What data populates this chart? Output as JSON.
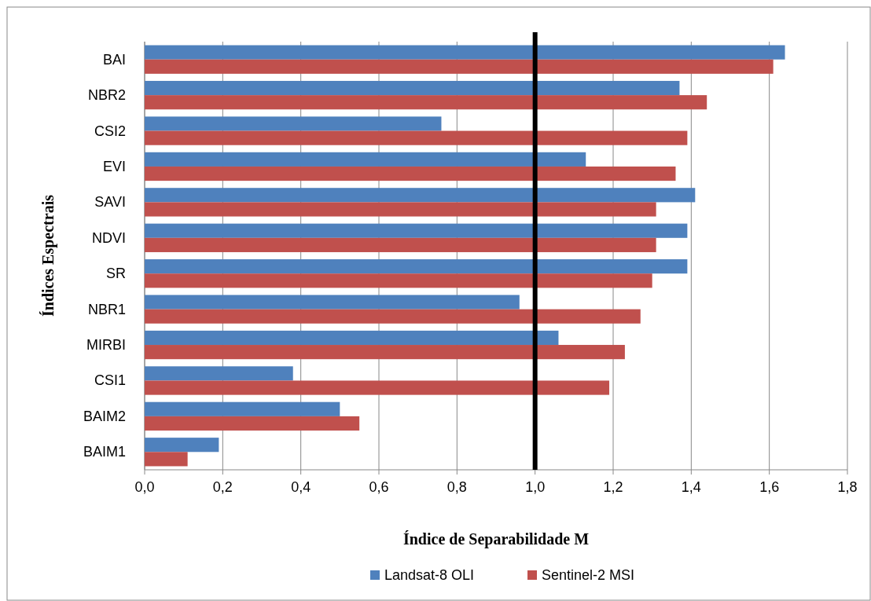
{
  "chart_data": {
    "type": "bar",
    "orientation": "horizontal",
    "xlabel": "Índice de Separabilidade M",
    "ylabel": "Índices Espectrais",
    "categories": [
      "BAI",
      "NBR2",
      "CSI2",
      "EVI",
      "SAVI",
      "NDVI",
      "SR",
      "NBR1",
      "MIRBI",
      "CSI1",
      "BAIM2",
      "BAIM1"
    ],
    "series": [
      {
        "name": "Landsat-8 OLI",
        "color": "#4f81bd",
        "values": [
          1.64,
          1.37,
          0.76,
          1.13,
          1.41,
          1.39,
          1.39,
          0.96,
          1.06,
          0.38,
          0.5,
          0.19
        ]
      },
      {
        "name": "Sentinel-2 MSI",
        "color": "#c0504d",
        "values": [
          1.61,
          1.44,
          1.39,
          1.36,
          1.31,
          1.31,
          1.3,
          1.27,
          1.23,
          1.19,
          0.55,
          0.11
        ]
      }
    ],
    "xlim": [
      0,
      1.8
    ],
    "xticks": [
      {
        "value": 0,
        "label": "0,0"
      },
      {
        "value": 0.2,
        "label": "0,2"
      },
      {
        "value": 0.4,
        "label": "0,4"
      },
      {
        "value": 0.6,
        "label": "0,6"
      },
      {
        "value": 0.8,
        "label": "0,8"
      },
      {
        "value": 1,
        "label": "1,0"
      },
      {
        "value": 1.2,
        "label": "1,2"
      },
      {
        "value": 1.4,
        "label": "1,4"
      },
      {
        "value": 1.6,
        "label": "1,6"
      },
      {
        "value": 1.8,
        "label": "1,8"
      }
    ],
    "grid": "x",
    "legend": "bottom",
    "ref_lines": [
      {
        "axis": "x",
        "value": 1,
        "color": "#000000"
      }
    ]
  }
}
